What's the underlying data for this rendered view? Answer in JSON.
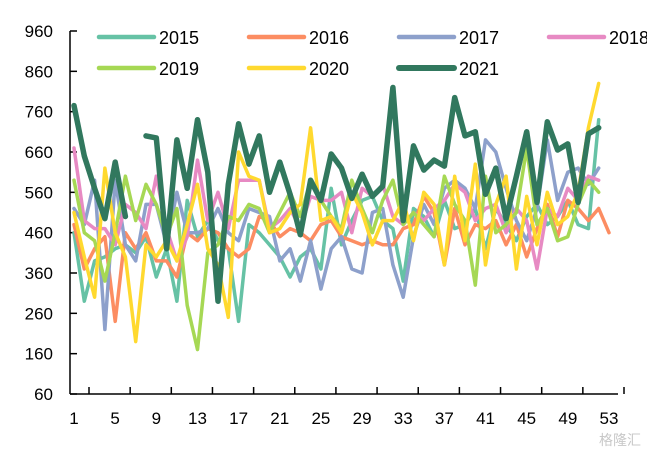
{
  "chart_data": {
    "type": "line",
    "title": "",
    "xlabel": "",
    "ylabel": "",
    "ylim": [
      60,
      960
    ],
    "yticks": [
      60,
      160,
      260,
      360,
      460,
      560,
      660,
      760,
      860,
      960
    ],
    "xlim": [
      1,
      53
    ],
    "xticks": [
      1,
      5,
      9,
      13,
      17,
      21,
      25,
      29,
      33,
      37,
      41,
      45,
      49,
      53
    ],
    "grid": false,
    "legend_position": "top",
    "x": [
      1,
      2,
      3,
      4,
      5,
      6,
      7,
      8,
      9,
      10,
      11,
      12,
      13,
      14,
      15,
      16,
      17,
      18,
      19,
      20,
      21,
      22,
      23,
      24,
      25,
      26,
      27,
      28,
      29,
      30,
      31,
      32,
      33,
      34,
      35,
      36,
      37,
      38,
      39,
      40,
      41,
      42,
      43,
      44,
      45,
      46,
      47,
      48,
      49,
      50,
      51,
      52,
      53
    ],
    "series": [
      {
        "name": "2015",
        "color": "#66c2a5",
        "values": [
          460,
          290,
          390,
          400,
          420,
          430,
          410,
          450,
          350,
          420,
          290,
          540,
          450,
          490,
          440,
          420,
          240,
          480,
          460,
          430,
          400,
          350,
          400,
          420,
          370,
          570,
          430,
          490,
          540,
          550,
          490,
          470,
          340,
          520,
          500,
          450,
          540,
          470,
          480,
          520,
          420,
          520,
          480,
          440,
          500,
          530,
          480,
          500,
          540,
          480,
          470,
          740,
          null
        ]
      },
      {
        "name": "2016",
        "color": "#fc8d62",
        "values": [
          480,
          370,
          420,
          450,
          240,
          460,
          420,
          460,
          390,
          390,
          350,
          460,
          440,
          470,
          460,
          420,
          400,
          420,
          500,
          490,
          450,
          470,
          460,
          440,
          480,
          490,
          450,
          440,
          430,
          440,
          430,
          430,
          470,
          480,
          550,
          510,
          380,
          520,
          430,
          480,
          470,
          490,
          430,
          480,
          400,
          470,
          530,
          450,
          540,
          520,
          490,
          520,
          460
        ]
      },
      {
        "name": "2017",
        "color": "#8da0cb",
        "values": [
          520,
          480,
          590,
          220,
          590,
          430,
          390,
          530,
          530,
          430,
          560,
          460,
          460,
          470,
          520,
          460,
          440,
          520,
          510,
          500,
          390,
          420,
          340,
          440,
          320,
          420,
          450,
          370,
          360,
          510,
          520,
          380,
          300,
          450,
          530,
          480,
          570,
          590,
          570,
          520,
          690,
          660,
          570,
          490,
          440,
          520,
          690,
          540,
          610,
          620,
          580,
          620,
          null
        ]
      },
      {
        "name": "2018",
        "color": "#e78ac3",
        "values": [
          670,
          490,
          470,
          470,
          430,
          530,
          510,
          470,
          600,
          470,
          390,
          450,
          640,
          490,
          560,
          470,
          590,
          590,
          590,
          470,
          490,
          520,
          470,
          550,
          540,
          540,
          560,
          460,
          570,
          550,
          580,
          500,
          480,
          510,
          490,
          520,
          540,
          580,
          560,
          490,
          520,
          530,
          460,
          520,
          490,
          370,
          520,
          500,
          570,
          540,
          600,
          590,
          null
        ]
      },
      {
        "name": "2019",
        "color": "#a6d854",
        "values": [
          590,
          460,
          440,
          340,
          460,
          600,
          490,
          580,
          530,
          450,
          520,
          280,
          170,
          410,
          430,
          500,
          490,
          530,
          520,
          460,
          510,
          560,
          500,
          590,
          540,
          500,
          470,
          590,
          520,
          460,
          540,
          590,
          480,
          510,
          480,
          450,
          600,
          530,
          490,
          330,
          600,
          460,
          480,
          510,
          670,
          480,
          520,
          440,
          450,
          530,
          590,
          560,
          null
        ]
      },
      {
        "name": "2020",
        "color": "#ffd92f",
        "values": [
          510,
          400,
          300,
          620,
          460,
          400,
          190,
          430,
          400,
          440,
          390,
          480,
          580,
          420,
          380,
          250,
          660,
          600,
          590,
          460,
          470,
          510,
          530,
          720,
          490,
          500,
          460,
          560,
          510,
          430,
          490,
          490,
          540,
          440,
          560,
          530,
          380,
          600,
          440,
          630,
          380,
          530,
          600,
          370,
          550,
          430,
          560,
          480,
          500,
          560,
          720,
          830,
          null
        ]
      },
      {
        "name": "2021",
        "color": "#31785e",
        "values": [
          775,
          650,
          570,
          495,
          635,
          500,
          null,
          700,
          695,
          420,
          690,
          570,
          740,
          610,
          290,
          580,
          730,
          630,
          700,
          560,
          635,
          555,
          455,
          590,
          540,
          655,
          620,
          545,
          605,
          550,
          575,
          820,
          490,
          675,
          615,
          640,
          625,
          795,
          700,
          710,
          555,
          620,
          495,
          600,
          710,
          535,
          735,
          665,
          680,
          535,
          705,
          720,
          null
        ]
      }
    ]
  },
  "watermark": "格隆汇"
}
